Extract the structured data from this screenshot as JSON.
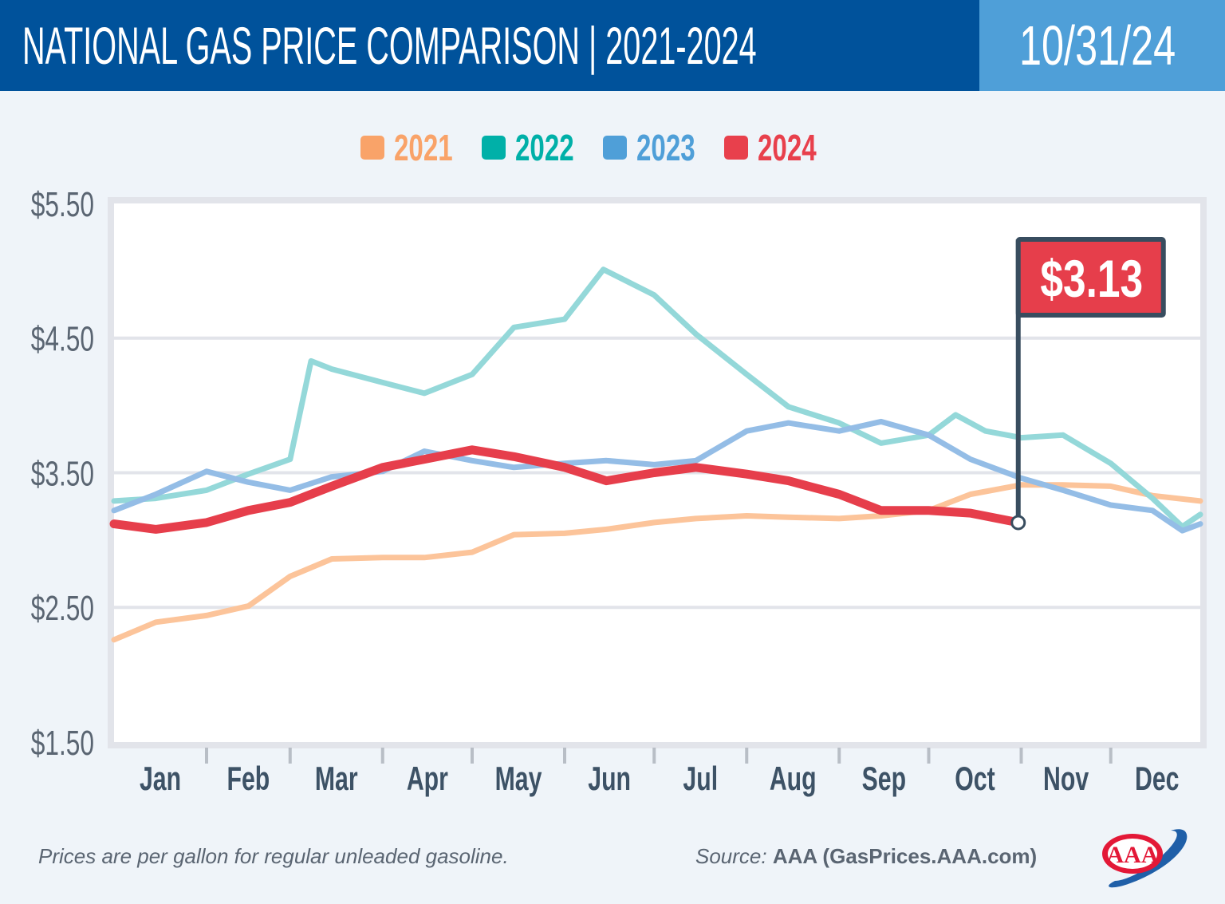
{
  "header": {
    "title": "NATIONAL GAS PRICE COMPARISON | 2021-2024",
    "date": "10/31/24"
  },
  "footer": {
    "note": "Prices are per gallon for regular unleaded gasoline.",
    "source_label": "Source:",
    "source": "AAA (GasPrices.AAA.com)",
    "logo": "AAA"
  },
  "chart_data": {
    "type": "line",
    "title": "NATIONAL GAS PRICE COMPARISON | 2021-2024",
    "xlabel": "",
    "ylabel": "",
    "ylim": [
      1.5,
      5.5
    ],
    "yticks": [
      1.5,
      2.5,
      3.5,
      4.5,
      5.5
    ],
    "ytick_labels": [
      "$1.50",
      "$2.50",
      "$3.50",
      "$4.50",
      "$5.50"
    ],
    "x_tick_labels": [
      "Jan",
      "Feb",
      "Mar",
      "Apr",
      "May",
      "Jun",
      "Jul",
      "Aug",
      "Sep",
      "Oct",
      "Nov",
      "Dec"
    ],
    "grid": true,
    "legend_position": "top-center",
    "annotation": {
      "label": "$3.13",
      "series": "2024",
      "date": "10-31",
      "value": 3.13
    },
    "series": [
      {
        "name": "2021",
        "color": "#f9a369",
        "line_color": "#fcc49a",
        "points": [
          [
            "01-01",
            2.26
          ],
          [
            "01-15",
            2.39
          ],
          [
            "02-01",
            2.44
          ],
          [
            "02-15",
            2.51
          ],
          [
            "03-01",
            2.73
          ],
          [
            "03-15",
            2.86
          ],
          [
            "04-01",
            2.87
          ],
          [
            "04-15",
            2.87
          ],
          [
            "05-01",
            2.91
          ],
          [
            "05-15",
            3.04
          ],
          [
            "06-01",
            3.05
          ],
          [
            "06-15",
            3.08
          ],
          [
            "07-01",
            3.13
          ],
          [
            "07-15",
            3.16
          ],
          [
            "08-01",
            3.18
          ],
          [
            "08-15",
            3.17
          ],
          [
            "09-01",
            3.16
          ],
          [
            "09-15",
            3.18
          ],
          [
            "10-01",
            3.22
          ],
          [
            "10-15",
            3.34
          ],
          [
            "11-01",
            3.41
          ],
          [
            "11-15",
            3.41
          ],
          [
            "12-01",
            3.4
          ],
          [
            "12-15",
            3.33
          ],
          [
            "12-31",
            3.29
          ]
        ]
      },
      {
        "name": "2022",
        "color": "#00b0a8",
        "line_color": "#94d8d9",
        "points": [
          [
            "01-01",
            3.29
          ],
          [
            "01-15",
            3.31
          ],
          [
            "02-01",
            3.37
          ],
          [
            "02-15",
            3.49
          ],
          [
            "03-01",
            3.6
          ],
          [
            "03-08",
            4.33
          ],
          [
            "03-15",
            4.27
          ],
          [
            "04-01",
            4.17
          ],
          [
            "04-15",
            4.09
          ],
          [
            "05-01",
            4.23
          ],
          [
            "05-15",
            4.58
          ],
          [
            "06-01",
            4.64
          ],
          [
            "06-14",
            5.01
          ],
          [
            "07-01",
            4.82
          ],
          [
            "07-15",
            4.53
          ],
          [
            "08-01",
            4.23
          ],
          [
            "08-15",
            3.99
          ],
          [
            "09-01",
            3.87
          ],
          [
            "09-15",
            3.72
          ],
          [
            "10-01",
            3.78
          ],
          [
            "10-10",
            3.93
          ],
          [
            "10-20",
            3.81
          ],
          [
            "11-01",
            3.76
          ],
          [
            "11-15",
            3.78
          ],
          [
            "12-01",
            3.57
          ],
          [
            "12-15",
            3.31
          ],
          [
            "12-25",
            3.1
          ],
          [
            "12-31",
            3.19
          ]
        ]
      },
      {
        "name": "2023",
        "color": "#4f9fd8",
        "line_color": "#94bde6",
        "points": [
          [
            "01-01",
            3.22
          ],
          [
            "01-15",
            3.34
          ],
          [
            "02-01",
            3.51
          ],
          [
            "02-15",
            3.43
          ],
          [
            "03-01",
            3.37
          ],
          [
            "03-15",
            3.47
          ],
          [
            "04-01",
            3.51
          ],
          [
            "04-15",
            3.66
          ],
          [
            "05-01",
            3.59
          ],
          [
            "05-15",
            3.54
          ],
          [
            "06-01",
            3.57
          ],
          [
            "06-15",
            3.59
          ],
          [
            "07-01",
            3.56
          ],
          [
            "07-15",
            3.59
          ],
          [
            "08-01",
            3.81
          ],
          [
            "08-15",
            3.87
          ],
          [
            "09-01",
            3.81
          ],
          [
            "09-15",
            3.88
          ],
          [
            "10-01",
            3.78
          ],
          [
            "10-15",
            3.6
          ],
          [
            "11-01",
            3.46
          ],
          [
            "11-15",
            3.37
          ],
          [
            "12-01",
            3.26
          ],
          [
            "12-15",
            3.22
          ],
          [
            "12-25",
            3.07
          ],
          [
            "12-31",
            3.12
          ]
        ]
      },
      {
        "name": "2024",
        "color": "#e8404c",
        "line_color": "#e63e4b",
        "points": [
          [
            "01-01",
            3.12
          ],
          [
            "01-15",
            3.08
          ],
          [
            "02-01",
            3.13
          ],
          [
            "02-15",
            3.22
          ],
          [
            "03-01",
            3.28
          ],
          [
            "03-15",
            3.4
          ],
          [
            "04-01",
            3.54
          ],
          [
            "04-15",
            3.6
          ],
          [
            "05-01",
            3.67
          ],
          [
            "05-15",
            3.62
          ],
          [
            "06-01",
            3.54
          ],
          [
            "06-15",
            3.44
          ],
          [
            "07-01",
            3.5
          ],
          [
            "07-15",
            3.54
          ],
          [
            "08-01",
            3.49
          ],
          [
            "08-15",
            3.44
          ],
          [
            "09-01",
            3.34
          ],
          [
            "09-15",
            3.22
          ],
          [
            "10-01",
            3.22
          ],
          [
            "10-15",
            3.2
          ],
          [
            "10-31",
            3.13
          ]
        ]
      }
    ]
  }
}
